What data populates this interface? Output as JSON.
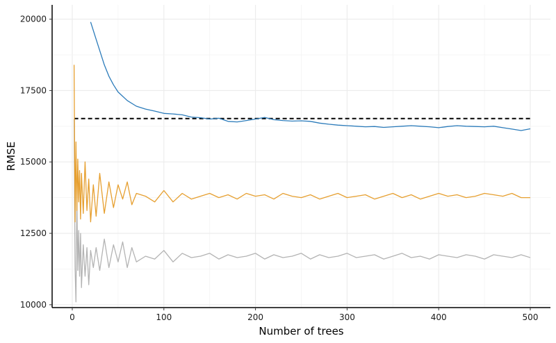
{
  "chart_data": {
    "type": "line",
    "title": "",
    "xlabel": "Number of trees",
    "ylabel": "RMSE",
    "xlim": [
      -22,
      522
    ],
    "ylim": [
      9900,
      20500
    ],
    "xticks": [
      0,
      100,
      200,
      300,
      400,
      500
    ],
    "yticks": [
      10000,
      12500,
      15000,
      17500,
      20000
    ],
    "xtick_labels": [
      "0",
      "100",
      "200",
      "300",
      "400",
      "500"
    ],
    "ytick_labels": [
      "10000",
      "12500",
      "15000",
      "17500",
      "20000"
    ],
    "grid": true,
    "legend": "none",
    "reference_line": {
      "y": 16520,
      "x_start": 2,
      "x_end": 500,
      "color": "#000000",
      "style": "dashed"
    },
    "series": [
      {
        "color": "#2b7bba",
        "x": [
          20,
          25,
          30,
          35,
          40,
          45,
          50,
          60,
          70,
          80,
          90,
          100,
          110,
          120,
          130,
          140,
          150,
          160,
          170,
          180,
          190,
          200,
          210,
          220,
          230,
          240,
          250,
          260,
          270,
          280,
          290,
          300,
          310,
          320,
          330,
          340,
          350,
          360,
          370,
          380,
          390,
          400,
          410,
          420,
          430,
          440,
          450,
          460,
          470,
          480,
          490,
          500
        ],
        "y": [
          19900,
          19400,
          18900,
          18400,
          18000,
          17700,
          17450,
          17150,
          16950,
          16850,
          16780,
          16700,
          16680,
          16650,
          16570,
          16550,
          16500,
          16530,
          16420,
          16400,
          16450,
          16500,
          16560,
          16480,
          16450,
          16430,
          16440,
          16420,
          16360,
          16320,
          16290,
          16270,
          16250,
          16230,
          16240,
          16210,
          16230,
          16250,
          16270,
          16250,
          16230,
          16200,
          16240,
          16270,
          16250,
          16240,
          16230,
          16250,
          16200,
          16150,
          16100,
          16160
        ]
      },
      {
        "color": "#e69f2f",
        "x": [
          2,
          3,
          4,
          5,
          6,
          7,
          8,
          9,
          10,
          12,
          14,
          16,
          18,
          20,
          23,
          26,
          30,
          35,
          40,
          45,
          50,
          55,
          60,
          65,
          70,
          80,
          90,
          100,
          110,
          120,
          130,
          140,
          150,
          160,
          170,
          180,
          190,
          200,
          210,
          220,
          230,
          240,
          250,
          260,
          270,
          280,
          290,
          300,
          310,
          320,
          330,
          340,
          350,
          360,
          370,
          380,
          390,
          400,
          410,
          420,
          430,
          440,
          450,
          460,
          470,
          480,
          490,
          500
        ],
        "y": [
          18400,
          12900,
          15700,
          13300,
          15100,
          13600,
          14700,
          13000,
          14600,
          13200,
          15000,
          13300,
          14400,
          12900,
          14200,
          13100,
          14600,
          13200,
          14300,
          13400,
          14200,
          13700,
          14300,
          13500,
          13900,
          13800,
          13600,
          14000,
          13600,
          13900,
          13700,
          13800,
          13900,
          13750,
          13850,
          13700,
          13900,
          13800,
          13850,
          13700,
          13900,
          13800,
          13750,
          13850,
          13700,
          13800,
          13900,
          13750,
          13800,
          13850,
          13700,
          13800,
          13900,
          13750,
          13850,
          13700,
          13800,
          13900,
          13800,
          13850,
          13750,
          13800,
          13900,
          13850,
          13800,
          13900,
          13750,
          13750
        ]
      },
      {
        "color": "#b3b3b3",
        "x": [
          2,
          3,
          4,
          5,
          6,
          7,
          8,
          9,
          10,
          12,
          14,
          16,
          18,
          20,
          23,
          26,
          30,
          35,
          40,
          45,
          50,
          55,
          60,
          65,
          70,
          80,
          90,
          100,
          110,
          120,
          130,
          140,
          150,
          160,
          170,
          180,
          190,
          200,
          210,
          220,
          230,
          240,
          250,
          260,
          270,
          280,
          290,
          300,
          310,
          320,
          330,
          340,
          350,
          360,
          370,
          380,
          390,
          400,
          410,
          420,
          430,
          440,
          450,
          460,
          470,
          480,
          490,
          500
        ],
        "y": [
          16500,
          11300,
          10100,
          13800,
          11200,
          12600,
          11000,
          12500,
          10600,
          12100,
          11000,
          12000,
          10700,
          11900,
          11300,
          12000,
          11200,
          12300,
          11300,
          12100,
          11500,
          12200,
          11300,
          12000,
          11500,
          11700,
          11600,
          11900,
          11500,
          11800,
          11650,
          11700,
          11800,
          11600,
          11750,
          11650,
          11700,
          11800,
          11600,
          11750,
          11650,
          11700,
          11800,
          11600,
          11750,
          11650,
          11700,
          11800,
          11650,
          11700,
          11750,
          11600,
          11700,
          11800,
          11650,
          11700,
          11600,
          11750,
          11700,
          11650,
          11750,
          11700,
          11600,
          11750,
          11700,
          11650,
          11750,
          11650
        ]
      }
    ]
  }
}
